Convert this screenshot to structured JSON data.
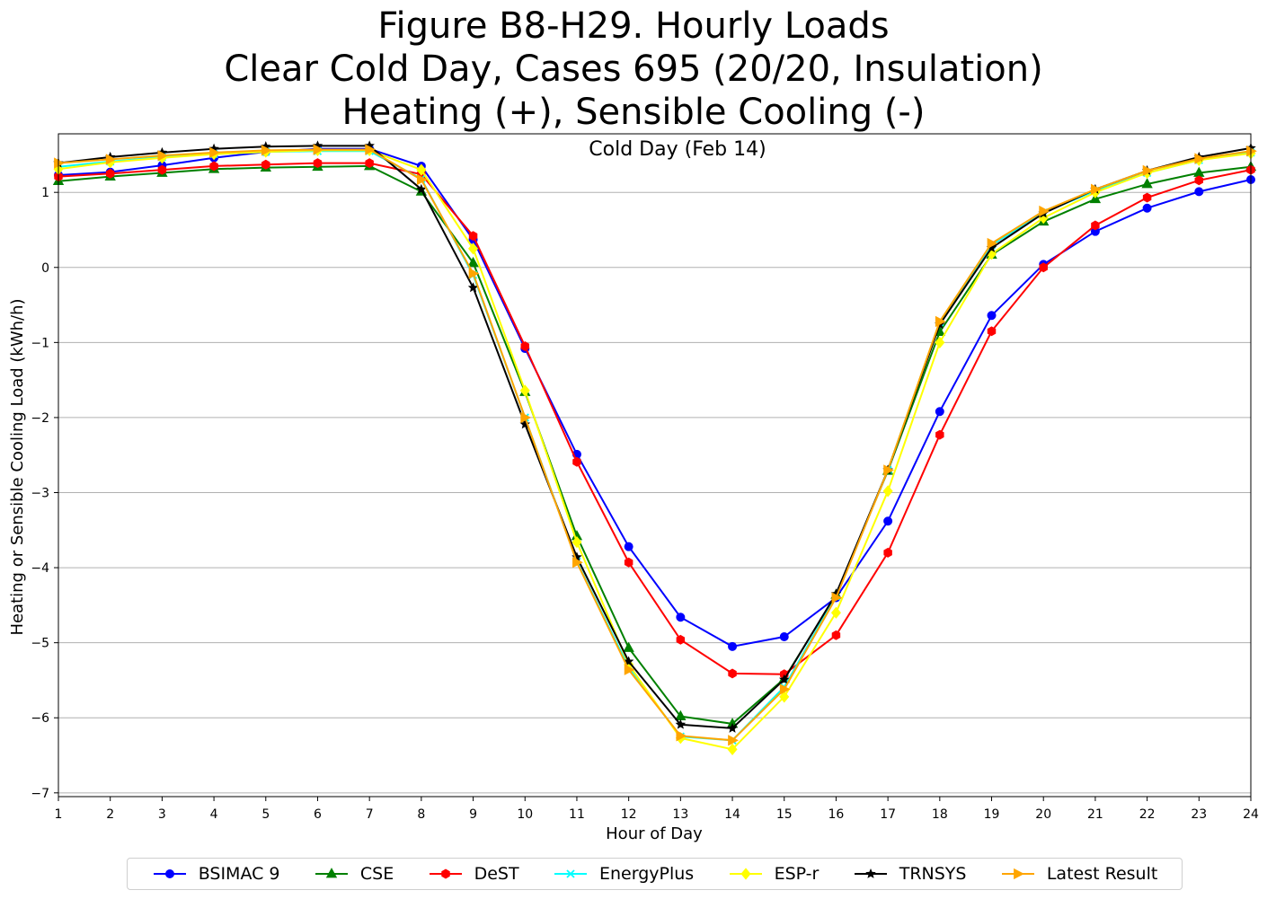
{
  "chart_data": {
    "type": "line",
    "title_lines": [
      "Figure B8-H29. Hourly Loads",
      "Clear Cold Day, Cases 695 (20/20, Insulation)",
      "Heating (+), Sensible Cooling (-)"
    ],
    "subtitle": "Cold Day (Feb 14)",
    "xlabel": "Hour of Day",
    "ylabel": "Heating or Sensible Cooling Load (kWh/h)",
    "xlim": [
      1,
      24
    ],
    "ylim": [
      -7.05,
      1.78
    ],
    "x_ticks": [
      1,
      2,
      3,
      4,
      5,
      6,
      7,
      8,
      9,
      10,
      11,
      12,
      13,
      14,
      15,
      16,
      17,
      18,
      19,
      20,
      21,
      22,
      23,
      24
    ],
    "y_ticks": [
      -7,
      -6,
      -5,
      -4,
      -3,
      -2,
      -1,
      0,
      1
    ],
    "y_tick_labels": [
      "−7",
      "−6",
      "−5",
      "−4",
      "−3",
      "−2",
      "−1",
      "0",
      "1"
    ],
    "grid": "horizontal",
    "legend_position": "bottom",
    "x": [
      1,
      2,
      3,
      4,
      5,
      6,
      7,
      8,
      9,
      10,
      11,
      12,
      13,
      14,
      15,
      16,
      17,
      18,
      19,
      20,
      21,
      22,
      23,
      24
    ],
    "series": [
      {
        "name": "BSIMAC 9",
        "color": "#0000ff",
        "marker": "circle",
        "values": [
          1.23,
          1.27,
          1.36,
          1.46,
          1.54,
          1.58,
          1.58,
          1.35,
          0.37,
          -1.08,
          -2.49,
          -3.72,
          -4.66,
          -5.05,
          -4.92,
          -4.4,
          -3.38,
          -1.92,
          -0.64,
          0.04,
          0.48,
          0.79,
          1.01,
          1.17
        ]
      },
      {
        "name": "CSE",
        "color": "#008000",
        "marker": "triangle",
        "values": [
          1.15,
          1.21,
          1.26,
          1.31,
          1.33,
          1.34,
          1.35,
          1.01,
          0.06,
          -1.66,
          -3.58,
          -5.07,
          -5.98,
          -6.08,
          -5.48,
          -4.36,
          -2.71,
          -0.86,
          0.17,
          0.61,
          0.91,
          1.11,
          1.26,
          1.34
        ]
      },
      {
        "name": "DeST",
        "color": "#ff0000",
        "marker": "hexagon",
        "values": [
          1.21,
          1.25,
          1.3,
          1.35,
          1.37,
          1.39,
          1.39,
          1.24,
          0.42,
          -1.05,
          -2.59,
          -3.93,
          -4.96,
          -5.41,
          -5.42,
          -4.9,
          -3.8,
          -2.23,
          -0.85,
          0.0,
          0.56,
          0.93,
          1.16,
          1.3
        ]
      },
      {
        "name": "EnergyPlus",
        "color": "#00ffff",
        "marker": "x",
        "values": [
          1.34,
          1.41,
          1.47,
          1.51,
          1.54,
          1.55,
          1.55,
          1.18,
          -0.1,
          -2.0,
          -3.92,
          -5.33,
          -6.25,
          -6.3,
          -5.59,
          -4.38,
          -2.7,
          -0.73,
          0.3,
          0.73,
          1.02,
          1.26,
          1.43,
          1.53
        ]
      },
      {
        "name": "ESP-r",
        "color": "#ffff00",
        "marker": "diamond",
        "values": [
          1.31,
          1.4,
          1.46,
          1.51,
          1.54,
          1.56,
          1.56,
          1.3,
          0.25,
          -1.64,
          -3.66,
          -5.29,
          -6.27,
          -6.42,
          -5.72,
          -4.6,
          -2.98,
          -1.0,
          0.18,
          0.66,
          1.0,
          1.26,
          1.43,
          1.52
        ]
      },
      {
        "name": "TRNSYS",
        "color": "#000000",
        "marker": "star",
        "values": [
          1.39,
          1.47,
          1.53,
          1.58,
          1.61,
          1.62,
          1.62,
          1.04,
          -0.27,
          -2.09,
          -3.86,
          -5.25,
          -6.09,
          -6.14,
          -5.49,
          -4.35,
          -2.7,
          -0.76,
          0.26,
          0.72,
          1.04,
          1.29,
          1.47,
          1.59
        ]
      },
      {
        "name": "Latest Result",
        "color": "#ffa500",
        "marker": "triangle-right",
        "values": [
          1.39,
          1.44,
          1.49,
          1.53,
          1.56,
          1.57,
          1.57,
          1.17,
          -0.08,
          -2.0,
          -3.93,
          -5.36,
          -6.24,
          -6.3,
          -5.62,
          -4.4,
          -2.7,
          -0.72,
          0.32,
          0.75,
          1.04,
          1.29,
          1.45,
          1.55
        ]
      }
    ]
  }
}
